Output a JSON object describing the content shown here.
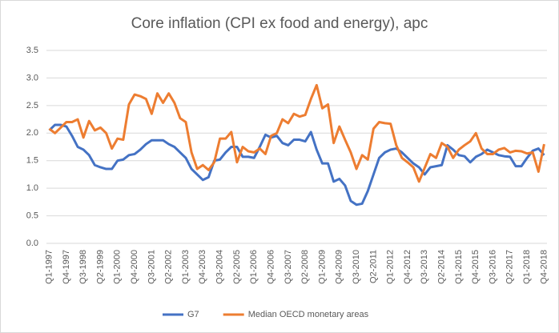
{
  "chart_data": {
    "type": "line",
    "title": "Core inflation (CPI ex food and energy), apc",
    "categories": [
      "Q1-1997",
      null,
      null,
      "Q4-1997",
      null,
      null,
      "Q3-1998",
      null,
      null,
      "Q2-1999",
      null,
      null,
      "Q1-2000",
      null,
      null,
      "Q4-2000",
      null,
      null,
      "Q3-2001",
      null,
      null,
      "Q2-2002",
      null,
      null,
      "Q1-2003",
      null,
      null,
      "Q4-2003",
      null,
      null,
      "Q3-2004",
      null,
      null,
      "Q2-2005",
      null,
      null,
      "Q1-2006",
      null,
      null,
      "Q4-2006",
      null,
      null,
      "Q3-2007",
      null,
      null,
      "Q2-2008",
      null,
      null,
      "Q1-2009",
      null,
      null,
      "Q4-2009",
      null,
      null,
      "Q3-2010",
      null,
      null,
      "Q2-2011",
      null,
      null,
      "Q1-2012",
      null,
      null,
      "Q4-2012",
      null,
      null,
      "Q3-2013",
      null,
      null,
      "Q2-2014",
      null,
      null,
      "Q1-2015",
      null,
      null,
      "Q4-2015",
      null,
      null,
      "Q3-2016",
      null,
      null,
      "Q2-2017",
      null,
      null,
      "Q1-2018",
      null,
      null,
      "Q4-2018"
    ],
    "series": [
      {
        "name": "G7",
        "color": "#4472c4",
        "values": [
          2.05,
          2.15,
          2.15,
          2.12,
          1.95,
          1.75,
          1.7,
          1.6,
          1.42,
          1.38,
          1.35,
          1.35,
          1.5,
          1.52,
          1.6,
          1.62,
          1.7,
          1.8,
          1.87,
          1.87,
          1.87,
          1.8,
          1.75,
          1.65,
          1.55,
          1.35,
          1.25,
          1.15,
          1.2,
          1.5,
          1.52,
          1.65,
          1.75,
          1.75,
          1.57,
          1.57,
          1.55,
          1.75,
          1.97,
          1.92,
          1.95,
          1.82,
          1.78,
          1.88,
          1.88,
          1.85,
          2.02,
          1.7,
          1.45,
          1.45,
          1.12,
          1.17,
          1.05,
          0.77,
          0.7,
          0.72,
          0.95,
          1.25,
          1.55,
          1.65,
          1.7,
          1.72,
          1.65,
          1.55,
          1.45,
          1.38,
          1.25,
          1.38,
          1.4,
          1.42,
          1.78,
          1.7,
          1.6,
          1.58,
          1.47,
          1.57,
          1.62,
          1.7,
          1.65,
          1.6,
          1.58,
          1.57,
          1.4,
          1.4,
          1.55,
          1.68,
          1.72,
          1.6
        ]
      },
      {
        "name": "Median OECD monetary areas",
        "color": "#ed7d31",
        "values": [
          2.08,
          2.0,
          2.1,
          2.2,
          2.2,
          2.25,
          1.92,
          2.22,
          2.05,
          2.1,
          2.0,
          1.72,
          1.9,
          1.88,
          2.52,
          2.7,
          2.67,
          2.62,
          2.35,
          2.72,
          2.55,
          2.72,
          2.55,
          2.27,
          2.2,
          1.65,
          1.35,
          1.42,
          1.33,
          1.47,
          1.9,
          1.9,
          2.02,
          1.47,
          1.75,
          1.67,
          1.65,
          1.72,
          1.62,
          1.95,
          2.0,
          2.25,
          2.18,
          2.35,
          2.3,
          2.33,
          2.62,
          2.87,
          2.45,
          2.52,
          1.82,
          2.12,
          1.88,
          1.65,
          1.35,
          1.6,
          1.52,
          2.08,
          2.2,
          2.18,
          2.17,
          1.78,
          1.55,
          1.47,
          1.38,
          1.12,
          1.37,
          1.62,
          1.55,
          1.82,
          1.75,
          1.55,
          1.7,
          1.78,
          1.85,
          2.0,
          1.72,
          1.62,
          1.62,
          1.7,
          1.73,
          1.65,
          1.68,
          1.67,
          1.63,
          1.65,
          1.3,
          1.8
        ]
      }
    ],
    "ylim": [
      0,
      3.5
    ],
    "yticks": [
      {
        "value": 0,
        "label": "0.0"
      },
      0.5,
      {
        "value": 1,
        "label": "1.0"
      },
      1.5,
      {
        "value": 2,
        "label": "2.0"
      },
      2.5,
      {
        "value": 3,
        "label": "3.0"
      },
      3.5
    ],
    "grid": true,
    "legend": "bottom"
  }
}
